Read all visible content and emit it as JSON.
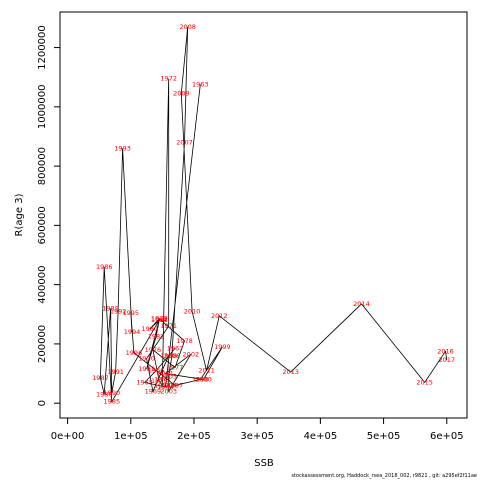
{
  "chart_data": {
    "type": "line",
    "title": "",
    "xlabel": "SSB",
    "ylabel": "R(age 3)",
    "xlim": [
      -12000,
      632000
    ],
    "ylim": [
      -50000,
      1320000
    ],
    "x_ticks": [
      0,
      100000,
      200000,
      300000,
      400000,
      500000,
      600000
    ],
    "x_tick_labels": [
      "0e+00",
      "1e+05",
      "2e+05",
      "3e+05",
      "4e+05",
      "5e+05",
      "6e+05"
    ],
    "y_ticks": [
      0,
      200000,
      400000,
      600000,
      800000,
      1000000,
      1200000
    ],
    "y_tick_labels": [
      "0",
      "200000",
      "400000",
      "600000",
      "800000",
      "1000000",
      "1200000"
    ],
    "grid": false,
    "legend": "none",
    "line_color": "#000000",
    "label_color": "#ff0000",
    "points": [
      {
        "year": "1963",
        "x": 210000,
        "y": 1075000
      },
      {
        "year": "1964",
        "x": 155000,
        "y": 55000
      },
      {
        "year": "1965",
        "x": 122000,
        "y": 70000
      },
      {
        "year": "1966",
        "x": 140000,
        "y": 110000
      },
      {
        "year": "1967",
        "x": 170000,
        "y": 185000
      },
      {
        "year": "1968",
        "x": 160000,
        "y": 160000
      },
      {
        "year": "1969",
        "x": 135000,
        "y": 40000
      },
      {
        "year": "1970",
        "x": 125000,
        "y": 150000
      },
      {
        "year": "1971",
        "x": 160000,
        "y": 260000
      },
      {
        "year": "1972",
        "x": 160000,
        "y": 1095000
      },
      {
        "year": "1973",
        "x": 150000,
        "y": 80000
      },
      {
        "year": "1974",
        "x": 150000,
        "y": 60000
      },
      {
        "year": "1975",
        "x": 145000,
        "y": 75000
      },
      {
        "year": "1976",
        "x": 135000,
        "y": 180000
      },
      {
        "year": "1977",
        "x": 170000,
        "y": 120000
      },
      {
        "year": "1978",
        "x": 185000,
        "y": 210000
      },
      {
        "year": "1979",
        "x": 145000,
        "y": 285000
      },
      {
        "year": "1980",
        "x": 130000,
        "y": 250000
      },
      {
        "year": "1981",
        "x": 145000,
        "y": 280000
      },
      {
        "year": "1982",
        "x": 140000,
        "y": 225000
      },
      {
        "year": "1983",
        "x": 125000,
        "y": 115000
      },
      {
        "year": "1984",
        "x": 145000,
        "y": 280000
      },
      {
        "year": "1985",
        "x": 70000,
        "y": 5000
      },
      {
        "year": "1986",
        "x": 58000,
        "y": 460000
      },
      {
        "year": "1987",
        "x": 52000,
        "y": 85000
      },
      {
        "year": "1988",
        "x": 58000,
        "y": 30000
      },
      {
        "year": "1989",
        "x": 68000,
        "y": 320000
      },
      {
        "year": "1990",
        "x": 70000,
        "y": 35000
      },
      {
        "year": "1991",
        "x": 76000,
        "y": 105000
      },
      {
        "year": "1992",
        "x": 80000,
        "y": 310000
      },
      {
        "year": "1993",
        "x": 87000,
        "y": 860000
      },
      {
        "year": "1994",
        "x": 102000,
        "y": 240000
      },
      {
        "year": "1995",
        "x": 100000,
        "y": 305000
      },
      {
        "year": "1996",
        "x": 105000,
        "y": 170000
      },
      {
        "year": "1997",
        "x": 170000,
        "y": 60000
      },
      {
        "year": "1998",
        "x": 210000,
        "y": 80000
      },
      {
        "year": "1999",
        "x": 245000,
        "y": 190000
      },
      {
        "year": "2000",
        "x": 215000,
        "y": 80000
      },
      {
        "year": "2001",
        "x": 155000,
        "y": 100000
      },
      {
        "year": "2002",
        "x": 195000,
        "y": 165000
      },
      {
        "year": "2003",
        "x": 160000,
        "y": 40000
      },
      {
        "year": "2004",
        "x": 160000,
        "y": 60000
      },
      {
        "year": "2005",
        "x": 160000,
        "y": 90000
      },
      {
        "year": "2006",
        "x": 165000,
        "y": 160000
      },
      {
        "year": "2007",
        "x": 185000,
        "y": 880000
      },
      {
        "year": "2008",
        "x": 190000,
        "y": 1270000
      },
      {
        "year": "2009",
        "x": 180000,
        "y": 1045000
      },
      {
        "year": "2010",
        "x": 197000,
        "y": 310000
      },
      {
        "year": "2011",
        "x": 220000,
        "y": 110000
      },
      {
        "year": "2012",
        "x": 240000,
        "y": 295000
      },
      {
        "year": "2013",
        "x": 353000,
        "y": 105000
      },
      {
        "year": "2014",
        "x": 465000,
        "y": 335000
      },
      {
        "year": "2015",
        "x": 565000,
        "y": 70000
      },
      {
        "year": "2016",
        "x": 598000,
        "y": 175000
      },
      {
        "year": "2017",
        "x": 600000,
        "y": 145000
      }
    ],
    "x_markers": [
      "1e+05"
    ]
  },
  "footer": "stockassessment.org, Haddock_rsea_2018_002, r9821 , git: a295ef2f11ae"
}
